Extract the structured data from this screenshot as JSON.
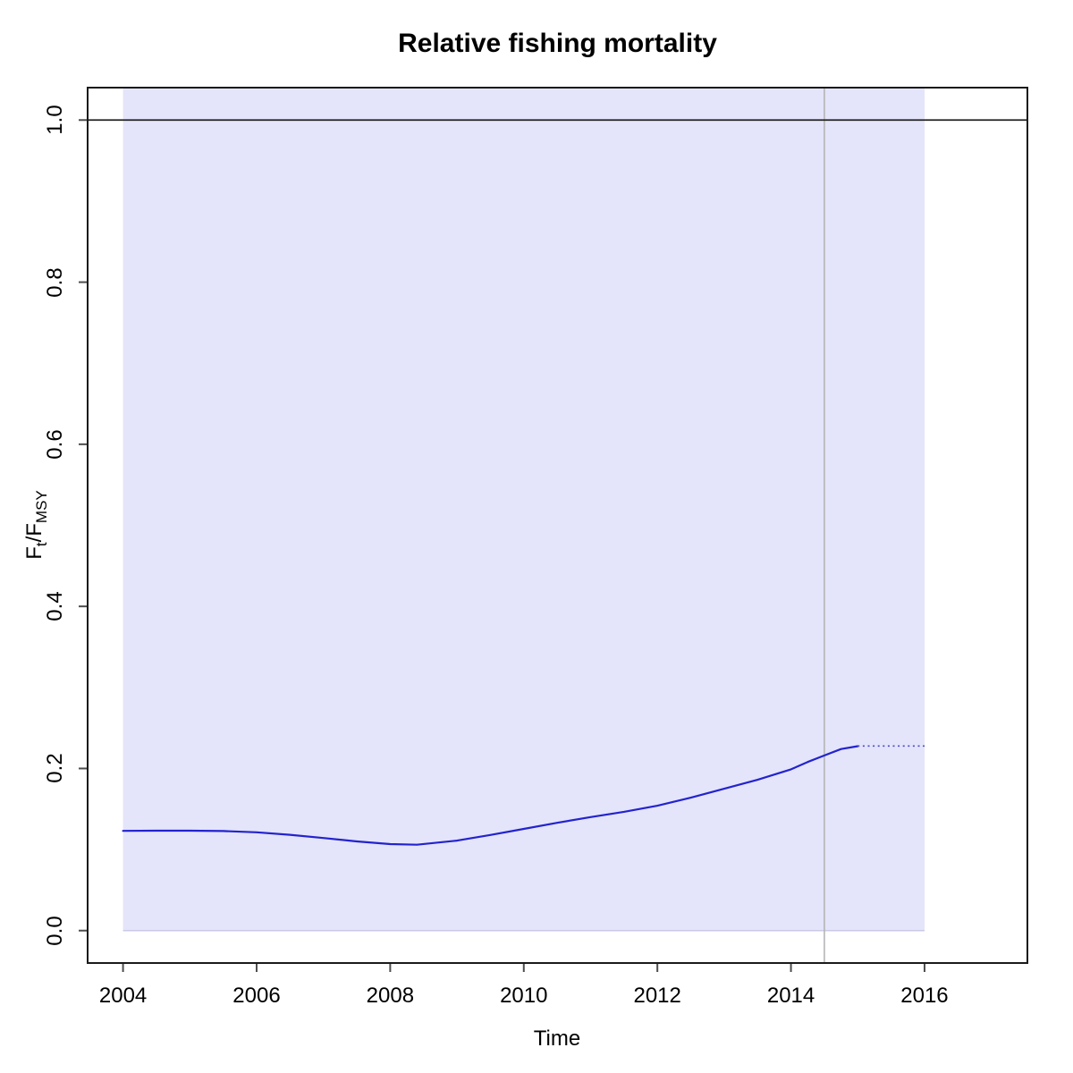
{
  "title": "Relative fishing mortality",
  "colors": {
    "background": "#FFFFFF",
    "plot_border": "#1A1A1A",
    "tick": "#4D4D4D",
    "text": "#000000",
    "band_fill": "#E4E4FA",
    "band_edge": "#C9C9E6",
    "estimate_line": "#2323CE",
    "forecast_line": "#4A4ACC",
    "reference_line": "#222222",
    "time_marker_line": "#B5B5B5"
  },
  "chart_data": {
    "type": "line",
    "title": "Relative fishing mortality",
    "xlabel": "Time",
    "ylabel": "F_t/F_MSY",
    "ylabel_parts": {
      "base1": "F",
      "sub1": "t",
      "base2": "/F",
      "sub2": "MSY"
    },
    "xlim": [
      2003.47,
      2017.54
    ],
    "ylim": [
      -0.04,
      1.04
    ],
    "grid": false,
    "legend": "none",
    "x_ticks": [
      {
        "value": 2004,
        "label": "2004"
      },
      {
        "value": 2006,
        "label": "2006"
      },
      {
        "value": 2008,
        "label": "2008"
      },
      {
        "value": 2010,
        "label": "2010"
      },
      {
        "value": 2012,
        "label": "2012"
      },
      {
        "value": 2014,
        "label": "2014"
      },
      {
        "value": 2016,
        "label": "2016"
      }
    ],
    "y_ticks": [
      {
        "value": 0.0,
        "label": "0.0"
      },
      {
        "value": 0.2,
        "label": "0.2"
      },
      {
        "value": 0.4,
        "label": "0.4"
      },
      {
        "value": 0.6,
        "label": "0.6"
      },
      {
        "value": 0.8,
        "label": "0.8"
      },
      {
        "value": 1.0,
        "label": "1.0"
      }
    ],
    "reference_line": {
      "y": 1.0
    },
    "time_marker_line": {
      "x": 2014.5
    },
    "confidence_band": {
      "x_start": 2004,
      "x_end": 2016,
      "y_bottom": 0.0,
      "y_top_clipped": 1.04
    },
    "series": [
      {
        "name": "F/Fmsy estimate",
        "style": "solid",
        "points": [
          [
            2004.0,
            0.123
          ],
          [
            2004.5,
            0.1233
          ],
          [
            2005.0,
            0.1233
          ],
          [
            2005.5,
            0.1228
          ],
          [
            2006.0,
            0.1213
          ],
          [
            2006.5,
            0.1182
          ],
          [
            2007.0,
            0.1142
          ],
          [
            2007.5,
            0.11
          ],
          [
            2008.0,
            0.1067
          ],
          [
            2008.4,
            0.106
          ],
          [
            2009.0,
            0.111
          ],
          [
            2009.5,
            0.118
          ],
          [
            2010.0,
            0.1255
          ],
          [
            2010.5,
            0.133
          ],
          [
            2011.0,
            0.14
          ],
          [
            2011.5,
            0.1465
          ],
          [
            2012.0,
            0.154
          ],
          [
            2012.5,
            0.164
          ],
          [
            2013.0,
            0.175
          ],
          [
            2013.5,
            0.186
          ],
          [
            2014.0,
            0.199
          ],
          [
            2014.25,
            0.208
          ],
          [
            2014.5,
            0.216
          ],
          [
            2014.75,
            0.224
          ],
          [
            2015.0,
            0.2275
          ]
        ]
      },
      {
        "name": "F/Fmsy forecast",
        "style": "dotted",
        "points": [
          [
            2015.0,
            0.2277
          ],
          [
            2016.0,
            0.2277
          ]
        ]
      }
    ]
  }
}
